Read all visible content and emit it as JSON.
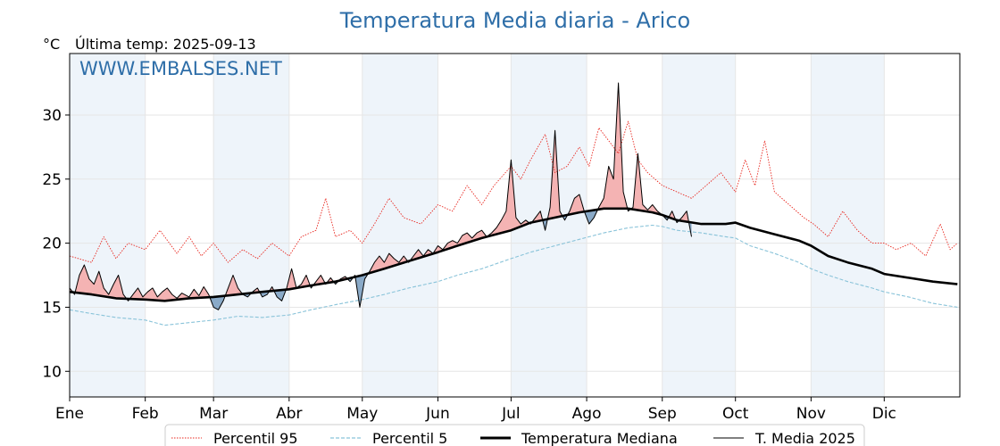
{
  "chart_data": {
    "type": "line",
    "title": "Temperatura Media diaria - Arico",
    "unit": "°C",
    "subtitle": "Última temp: 2025-09-13",
    "watermark": "WWW.EMBALSES.NET",
    "ylim": [
      8,
      34.8
    ],
    "yticks": [
      10,
      15,
      20,
      25,
      30
    ],
    "month_ticks": [
      "Ene",
      "Feb",
      "Mar",
      "Abr",
      "May",
      "Jun",
      "Jul",
      "Ago",
      "Sep",
      "Oct",
      "Nov",
      "Dic"
    ],
    "month_start_day": [
      1,
      32,
      60,
      91,
      121,
      152,
      182,
      213,
      244,
      274,
      305,
      335
    ],
    "shaded_months": [
      "Ene",
      "Mar",
      "May",
      "Jul",
      "Sep",
      "Nov"
    ],
    "grid": true,
    "legend_position": "bottom",
    "colors": {
      "p95": "#e8261e",
      "p5": "#89c3d9",
      "median": "#000000",
      "current": "#000000",
      "above_fill": "#f4b3b3",
      "below_fill": "#8aaac8",
      "title": "#2e6ea8",
      "month_band": "#eef4fa"
    },
    "series": [
      {
        "name": "Percentil 95",
        "style": "dotted-red",
        "points": [
          [
            1,
            19.0
          ],
          [
            10,
            18.5
          ],
          [
            15,
            20.5
          ],
          [
            20,
            18.8
          ],
          [
            25,
            20.0
          ],
          [
            32,
            19.5
          ],
          [
            38,
            21.0
          ],
          [
            45,
            19.2
          ],
          [
            50,
            20.5
          ],
          [
            55,
            19.0
          ],
          [
            60,
            20.0
          ],
          [
            66,
            18.5
          ],
          [
            72,
            19.5
          ],
          [
            78,
            18.8
          ],
          [
            84,
            20.0
          ],
          [
            91,
            19.0
          ],
          [
            96,
            20.5
          ],
          [
            102,
            21.0
          ],
          [
            106,
            23.5
          ],
          [
            110,
            20.5
          ],
          [
            116,
            21.0
          ],
          [
            121,
            20.0
          ],
          [
            126,
            21.5
          ],
          [
            132,
            23.5
          ],
          [
            138,
            22.0
          ],
          [
            145,
            21.5
          ],
          [
            152,
            23.0
          ],
          [
            158,
            22.5
          ],
          [
            164,
            24.5
          ],
          [
            170,
            23.0
          ],
          [
            175,
            24.5
          ],
          [
            182,
            26.0
          ],
          [
            186,
            25.0
          ],
          [
            190,
            26.5
          ],
          [
            196,
            28.5
          ],
          [
            200,
            25.5
          ],
          [
            205,
            26.0
          ],
          [
            210,
            27.5
          ],
          [
            214,
            26.0
          ],
          [
            218,
            29.0
          ],
          [
            222,
            28.0
          ],
          [
            226,
            27.0
          ],
          [
            230,
            29.5
          ],
          [
            234,
            26.5
          ],
          [
            238,
            25.5
          ],
          [
            244,
            24.5
          ],
          [
            250,
            24.0
          ],
          [
            256,
            23.5
          ],
          [
            262,
            24.5
          ],
          [
            268,
            25.5
          ],
          [
            274,
            24.0
          ],
          [
            278,
            26.5
          ],
          [
            282,
            24.5
          ],
          [
            286,
            28.0
          ],
          [
            290,
            24.0
          ],
          [
            296,
            23.0
          ],
          [
            302,
            22.0
          ],
          [
            306,
            21.5
          ],
          [
            312,
            20.5
          ],
          [
            318,
            22.5
          ],
          [
            324,
            21.0
          ],
          [
            330,
            20.0
          ],
          [
            335,
            20.0
          ],
          [
            340,
            19.5
          ],
          [
            346,
            20.0
          ],
          [
            352,
            19.0
          ],
          [
            358,
            21.5
          ],
          [
            362,
            19.5
          ],
          [
            365,
            20.0
          ]
        ]
      },
      {
        "name": "Percentil 5",
        "style": "dashed-lightblue",
        "points": [
          [
            1,
            14.8
          ],
          [
            10,
            14.5
          ],
          [
            20,
            14.2
          ],
          [
            32,
            14.0
          ],
          [
            40,
            13.6
          ],
          [
            50,
            13.8
          ],
          [
            60,
            14.0
          ],
          [
            70,
            14.3
          ],
          [
            80,
            14.2
          ],
          [
            91,
            14.4
          ],
          [
            100,
            14.8
          ],
          [
            110,
            15.2
          ],
          [
            121,
            15.6
          ],
          [
            130,
            16.0
          ],
          [
            140,
            16.5
          ],
          [
            152,
            17.0
          ],
          [
            160,
            17.5
          ],
          [
            170,
            18.0
          ],
          [
            182,
            18.8
          ],
          [
            190,
            19.3
          ],
          [
            200,
            19.8
          ],
          [
            210,
            20.3
          ],
          [
            220,
            20.8
          ],
          [
            230,
            21.2
          ],
          [
            240,
            21.4
          ],
          [
            244,
            21.3
          ],
          [
            250,
            21.0
          ],
          [
            260,
            20.8
          ],
          [
            270,
            20.5
          ],
          [
            274,
            20.4
          ],
          [
            280,
            19.8
          ],
          [
            290,
            19.2
          ],
          [
            300,
            18.5
          ],
          [
            305,
            18.0
          ],
          [
            312,
            17.5
          ],
          [
            320,
            17.0
          ],
          [
            330,
            16.5
          ],
          [
            335,
            16.2
          ],
          [
            345,
            15.8
          ],
          [
            355,
            15.3
          ],
          [
            365,
            15.0
          ]
        ]
      },
      {
        "name": "Temperatura Mediana",
        "style": "thick-black",
        "points": [
          [
            1,
            16.2
          ],
          [
            10,
            16.0
          ],
          [
            20,
            15.7
          ],
          [
            32,
            15.6
          ],
          [
            40,
            15.5
          ],
          [
            50,
            15.7
          ],
          [
            60,
            15.8
          ],
          [
            70,
            16.0
          ],
          [
            80,
            16.2
          ],
          [
            91,
            16.4
          ],
          [
            100,
            16.7
          ],
          [
            110,
            17.0
          ],
          [
            121,
            17.5
          ],
          [
            130,
            18.0
          ],
          [
            140,
            18.6
          ],
          [
            152,
            19.3
          ],
          [
            160,
            19.8
          ],
          [
            170,
            20.4
          ],
          [
            182,
            21.0
          ],
          [
            190,
            21.6
          ],
          [
            200,
            22.0
          ],
          [
            210,
            22.4
          ],
          [
            220,
            22.7
          ],
          [
            230,
            22.7
          ],
          [
            240,
            22.4
          ],
          [
            244,
            22.2
          ],
          [
            250,
            21.8
          ],
          [
            260,
            21.5
          ],
          [
            270,
            21.5
          ],
          [
            274,
            21.6
          ],
          [
            280,
            21.2
          ],
          [
            290,
            20.7
          ],
          [
            300,
            20.2
          ],
          [
            305,
            19.8
          ],
          [
            312,
            19.0
          ],
          [
            320,
            18.5
          ],
          [
            330,
            18.0
          ],
          [
            335,
            17.6
          ],
          [
            345,
            17.3
          ],
          [
            355,
            17.0
          ],
          [
            365,
            16.8
          ]
        ]
      },
      {
        "name": "T. Media 2025",
        "style": "thin-black",
        "points": [
          [
            1,
            16.5
          ],
          [
            3,
            16.0
          ],
          [
            5,
            17.5
          ],
          [
            7,
            18.3
          ],
          [
            9,
            17.2
          ],
          [
            11,
            16.8
          ],
          [
            13,
            17.8
          ],
          [
            15,
            16.5
          ],
          [
            17,
            16.0
          ],
          [
            19,
            16.8
          ],
          [
            21,
            17.5
          ],
          [
            23,
            16.0
          ],
          [
            25,
            15.5
          ],
          [
            27,
            16.0
          ],
          [
            29,
            16.5
          ],
          [
            31,
            15.8
          ],
          [
            33,
            16.2
          ],
          [
            35,
            16.5
          ],
          [
            37,
            15.8
          ],
          [
            39,
            16.2
          ],
          [
            41,
            16.5
          ],
          [
            43,
            16.0
          ],
          [
            45,
            15.7
          ],
          [
            47,
            16.1
          ],
          [
            50,
            15.8
          ],
          [
            52,
            16.4
          ],
          [
            54,
            15.9
          ],
          [
            56,
            16.6
          ],
          [
            58,
            16.0
          ],
          [
            60,
            15.0
          ],
          [
            62,
            14.8
          ],
          [
            64,
            15.5
          ],
          [
            66,
            16.5
          ],
          [
            68,
            17.5
          ],
          [
            70,
            16.5
          ],
          [
            72,
            16.0
          ],
          [
            74,
            15.8
          ],
          [
            76,
            16.2
          ],
          [
            78,
            16.5
          ],
          [
            80,
            15.8
          ],
          [
            82,
            16.0
          ],
          [
            84,
            16.6
          ],
          [
            86,
            15.8
          ],
          [
            88,
            15.5
          ],
          [
            90,
            16.5
          ],
          [
            92,
            18.0
          ],
          [
            94,
            16.5
          ],
          [
            96,
            16.8
          ],
          [
            98,
            17.5
          ],
          [
            100,
            16.5
          ],
          [
            102,
            17.0
          ],
          [
            104,
            17.5
          ],
          [
            106,
            16.8
          ],
          [
            108,
            17.3
          ],
          [
            110,
            16.8
          ],
          [
            112,
            17.2
          ],
          [
            114,
            17.4
          ],
          [
            116,
            17.0
          ],
          [
            118,
            17.5
          ],
          [
            120,
            15.0
          ],
          [
            122,
            17.2
          ],
          [
            124,
            17.8
          ],
          [
            126,
            18.5
          ],
          [
            128,
            19.0
          ],
          [
            130,
            18.5
          ],
          [
            132,
            19.2
          ],
          [
            134,
            18.8
          ],
          [
            136,
            18.5
          ],
          [
            138,
            19.0
          ],
          [
            140,
            18.5
          ],
          [
            142,
            19.0
          ],
          [
            144,
            19.5
          ],
          [
            146,
            19.0
          ],
          [
            148,
            19.5
          ],
          [
            150,
            19.2
          ],
          [
            152,
            19.8
          ],
          [
            154,
            19.5
          ],
          [
            156,
            20.0
          ],
          [
            158,
            20.2
          ],
          [
            160,
            20.0
          ],
          [
            162,
            20.6
          ],
          [
            164,
            20.8
          ],
          [
            166,
            20.4
          ],
          [
            168,
            20.8
          ],
          [
            170,
            21.0
          ],
          [
            172,
            20.5
          ],
          [
            174,
            20.8
          ],
          [
            176,
            21.2
          ],
          [
            178,
            21.8
          ],
          [
            180,
            22.5
          ],
          [
            182,
            26.5
          ],
          [
            184,
            22.0
          ],
          [
            186,
            21.5
          ],
          [
            188,
            21.8
          ],
          [
            190,
            21.5
          ],
          [
            192,
            22.0
          ],
          [
            194,
            22.5
          ],
          [
            196,
            21.0
          ],
          [
            198,
            22.8
          ],
          [
            200,
            28.8
          ],
          [
            202,
            22.5
          ],
          [
            204,
            21.8
          ],
          [
            206,
            22.5
          ],
          [
            208,
            23.5
          ],
          [
            210,
            23.8
          ],
          [
            212,
            22.5
          ],
          [
            214,
            21.5
          ],
          [
            216,
            22.0
          ],
          [
            218,
            22.8
          ],
          [
            220,
            23.5
          ],
          [
            222,
            26.0
          ],
          [
            224,
            25.0
          ],
          [
            226,
            32.5
          ],
          [
            228,
            24.0
          ],
          [
            230,
            22.5
          ],
          [
            232,
            22.8
          ],
          [
            234,
            27.0
          ],
          [
            236,
            23.0
          ],
          [
            238,
            22.6
          ],
          [
            240,
            23.0
          ],
          [
            242,
            22.5
          ],
          [
            244,
            22.2
          ],
          [
            246,
            21.8
          ],
          [
            248,
            22.5
          ],
          [
            250,
            21.6
          ],
          [
            252,
            22.0
          ],
          [
            254,
            22.5
          ],
          [
            256,
            20.5
          ]
        ]
      }
    ]
  }
}
